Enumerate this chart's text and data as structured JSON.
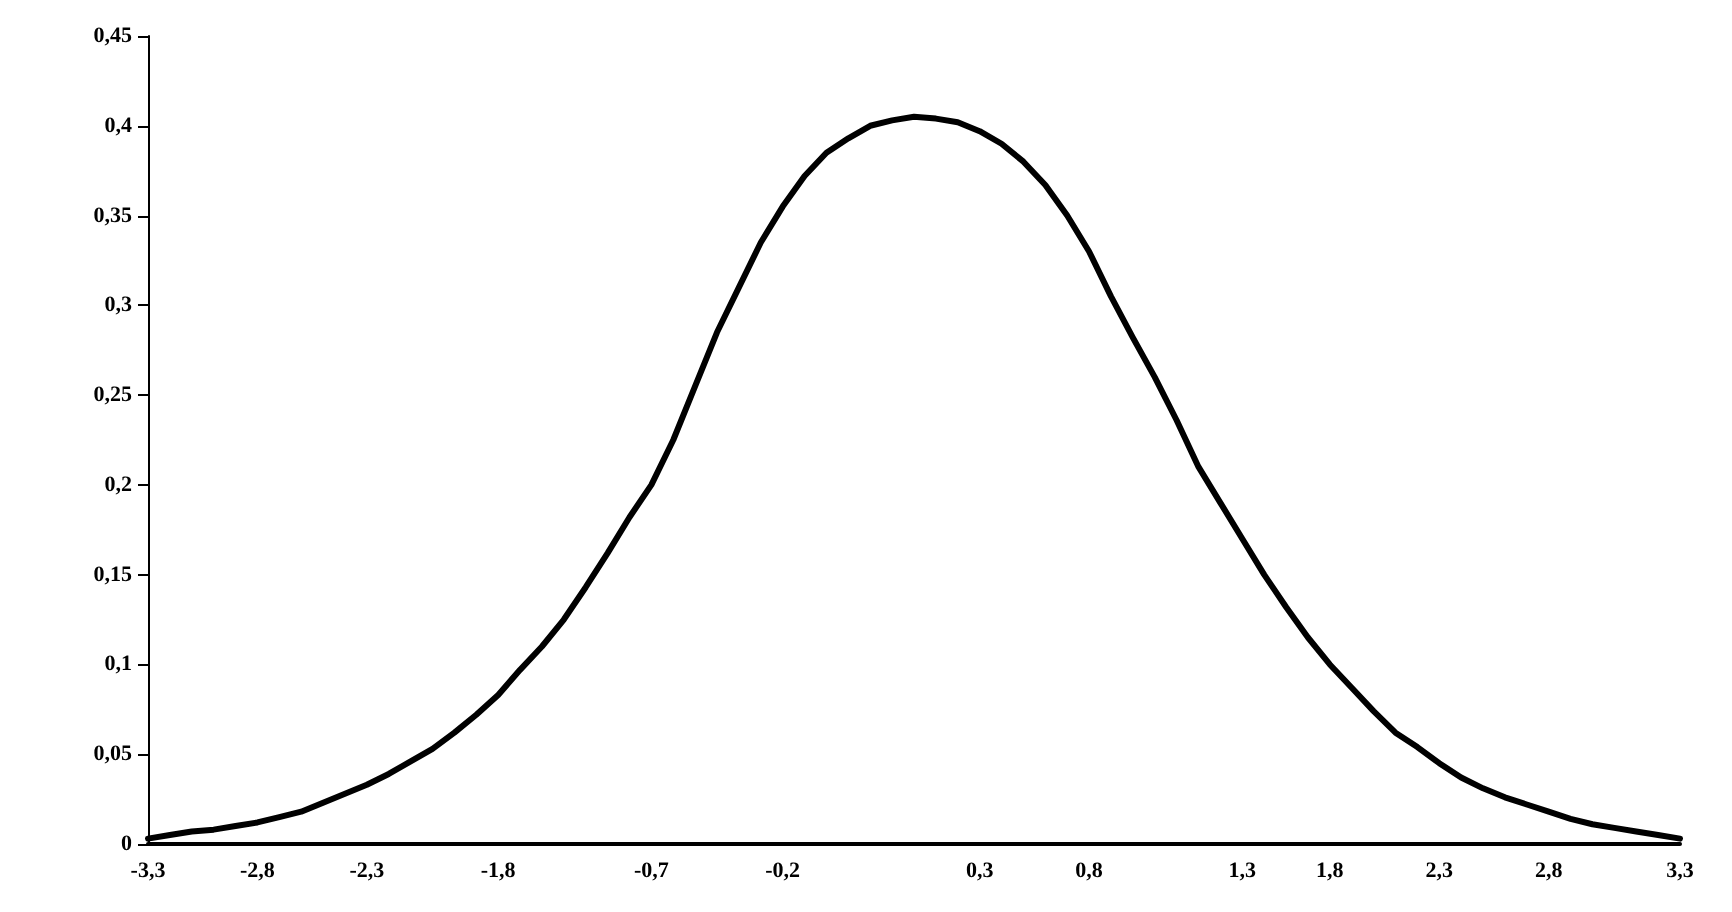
{
  "chart_data": {
    "type": "line",
    "categories": [
      "-3,3",
      null,
      null,
      null,
      null,
      "-2,8",
      null,
      null,
      null,
      null,
      "-2,3",
      null,
      null,
      null,
      null,
      null,
      "-1,8",
      null,
      null,
      null,
      null,
      null,
      null,
      "-0,7",
      null,
      null,
      null,
      null,
      null,
      "-0,2",
      null,
      null,
      null,
      null,
      null,
      null,
      null,
      null,
      "0,3",
      null,
      null,
      null,
      null,
      "0,8",
      null,
      null,
      null,
      null,
      null,
      null,
      "1,3",
      null,
      null,
      null,
      "1,8",
      null,
      null,
      null,
      null,
      "2,3",
      null,
      null,
      null,
      null,
      "2,8",
      null,
      null,
      null,
      null,
      null,
      "3,3"
    ],
    "series": [
      {
        "color": "#000000",
        "values": [
          0.003,
          0.005,
          0.007,
          0.008,
          0.01,
          0.012,
          0.015,
          0.018,
          0.023,
          0.028,
          0.033,
          0.039,
          0.046,
          0.053,
          0.062,
          0.072,
          0.083,
          0.097,
          0.11,
          0.125,
          0.143,
          0.162,
          0.182,
          0.2,
          0.225,
          0.255,
          0.285,
          0.31,
          0.335,
          0.355,
          0.372,
          0.385,
          0.393,
          0.4,
          0.403,
          0.405,
          0.404,
          0.402,
          0.397,
          0.39,
          0.38,
          0.367,
          0.35,
          0.33,
          0.305,
          0.282,
          0.26,
          0.236,
          0.21,
          0.19,
          0.17,
          0.15,
          0.132,
          0.115,
          0.1,
          0.087,
          0.074,
          0.062,
          0.054,
          0.045,
          0.037,
          0.031,
          0.026,
          0.022,
          0.018,
          0.014,
          0.011,
          0.009,
          0.007,
          0.005,
          0.003
        ]
      }
    ],
    "ylim": [
      0,
      0.45
    ],
    "yticks": [
      0,
      {
        "value": 0.05,
        "label": "0,05"
      },
      {
        "value": 0.1,
        "label": "0,1"
      },
      {
        "value": 0.15,
        "label": "0,15"
      },
      {
        "value": 0.2,
        "label": "0,2"
      },
      {
        "value": 0.25,
        "label": "0,25"
      },
      {
        "value": 0.3,
        "label": "0,3"
      },
      {
        "value": 0.35,
        "label": "0,35"
      },
      {
        "value": 0.4,
        "label": "0,4"
      },
      {
        "value": 0.45,
        "label": "0,45"
      }
    ],
    "grid": false,
    "marker": "none",
    "line_style": "solid"
  }
}
